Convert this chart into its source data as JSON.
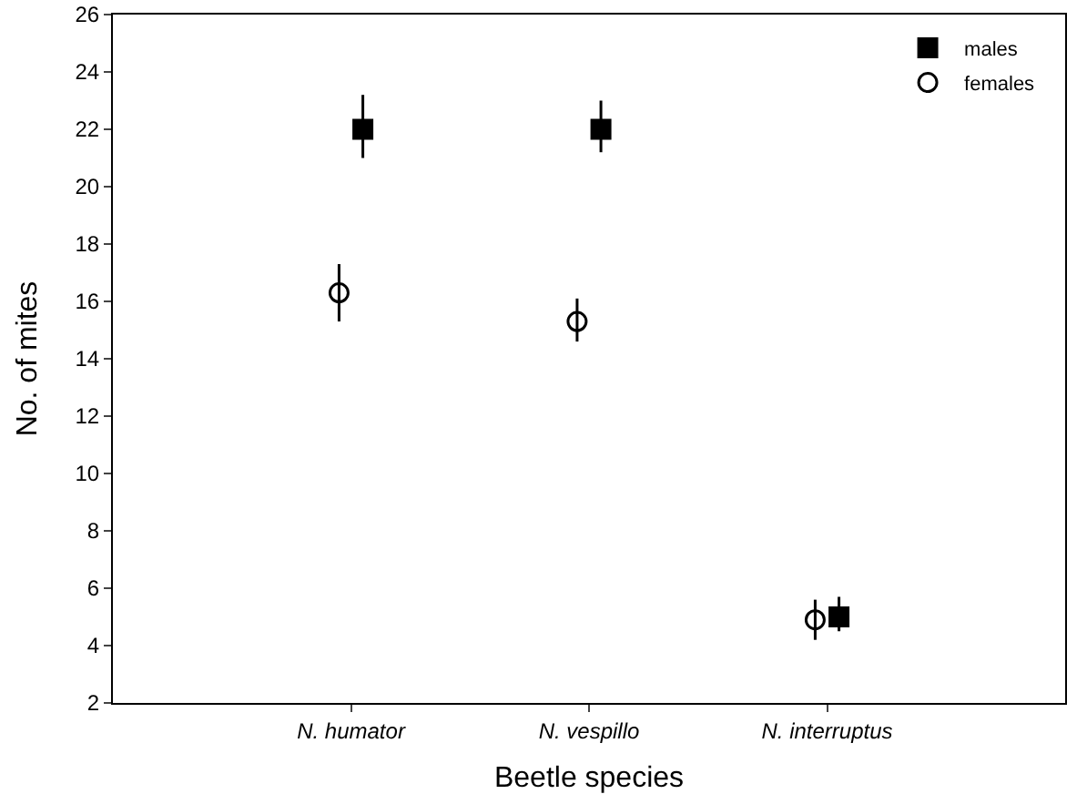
{
  "chart_data": {
    "type": "scatter",
    "xlabel": "Beetle species",
    "ylabel": "No. of mites",
    "categories": [
      "N. humator",
      "N. vespillo",
      "N. interruptus"
    ],
    "series": [
      {
        "name": "females",
        "color": "#000000",
        "marker": "circle",
        "values": [
          16.3,
          15.3,
          4.9
        ],
        "errors": [
          [
            15.3,
            17.3
          ],
          [
            14.6,
            16.1
          ],
          [
            4.2,
            5.6
          ]
        ]
      },
      {
        "name": "males",
        "color": "#000000",
        "marker": "square",
        "values": [
          22,
          22,
          5.0
        ],
        "errors": [
          [
            21.0,
            23.2
          ],
          [
            21.2,
            23.0
          ],
          [
            4.5,
            5.7
          ]
        ]
      }
    ],
    "ylim": [
      2,
      26
    ],
    "yticks": [
      2,
      4,
      6,
      8,
      10,
      12,
      14,
      16,
      18,
      20,
      22,
      24,
      26
    ],
    "grid": false,
    "legend": "top right"
  }
}
